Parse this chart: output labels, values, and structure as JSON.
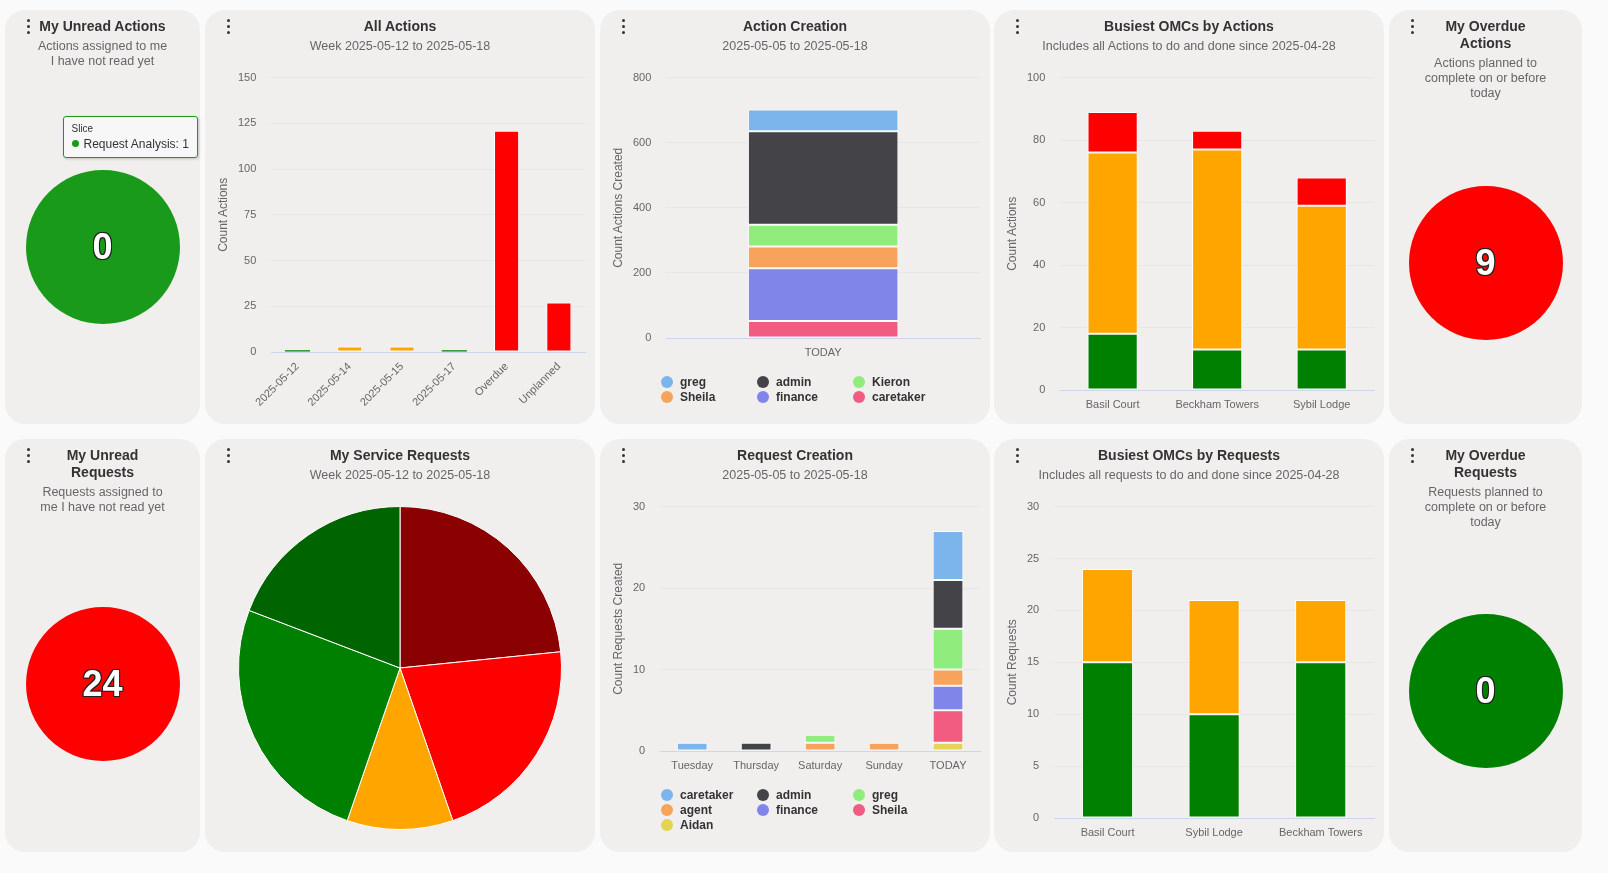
{
  "chart_data": [
    {
      "type": "pie",
      "title": "My Unread Actions",
      "subtitle": "Actions assigned to me I have not read yet",
      "categories": [
        null
      ],
      "values": [
        100
      ],
      "colors": [
        "#1a9a1a"
      ],
      "annotations": [
        "0",
        "Slice",
        "Request Analysis: 1"
      ]
    },
    {
      "type": "bar",
      "title": "All Actions",
      "subtitle": "Week 2025-05-12 to 2025-05-18",
      "ylabel": "Count Actions",
      "categories": [
        "2025-05-12",
        "2025-05-14",
        "2025-05-15",
        "2025-05-17",
        "Overdue",
        "Unplanned"
      ],
      "values": [
        1,
        3,
        3,
        1,
        121,
        27
      ],
      "colors": [
        "#008000",
        "#ffa500",
        "#ffa500",
        "#008000",
        "#ff0000",
        "#ff0000"
      ],
      "ylim": [
        0,
        150
      ],
      "yticks": [
        0,
        25,
        50,
        75,
        100,
        125,
        150
      ],
      "grid": "y"
    },
    {
      "type": "bar",
      "title": "Action Creation",
      "subtitle": "2025-05-05 to 2025-05-18",
      "ylabel": "Count Actions Created",
      "categories": [
        "TODAY"
      ],
      "stacked": true,
      "series": [
        {
          "name": "caretaker",
          "color": "#f15c80",
          "values": [
            52
          ]
        },
        {
          "name": "finance",
          "color": "#8085e9",
          "values": [
            162
          ]
        },
        {
          "name": "Sheila",
          "color": "#f7a35c",
          "values": [
            67
          ]
        },
        {
          "name": "Kieron",
          "color": "#90ed7d",
          "values": [
            67
          ]
        },
        {
          "name": "admin",
          "color": "#434348",
          "values": [
            287
          ]
        },
        {
          "name": "greg",
          "color": "#7cb5ec",
          "values": [
            67
          ]
        }
      ],
      "ylim": [
        0,
        800
      ],
      "yticks": [
        0,
        200,
        400,
        600,
        800
      ],
      "grid": "y",
      "legend": "bottom"
    },
    {
      "type": "bar",
      "title": "Busiest OMCs by Actions",
      "subtitle": "Includes all Actions to do and done since 2025-04-28",
      "ylabel": "Count Actions",
      "categories": [
        "Basil Court",
        "Beckham Towers",
        "Sybil Lodge"
      ],
      "stacked": true,
      "series": [
        {
          "color": "#008000",
          "values": [
            18,
            13,
            13
          ]
        },
        {
          "color": "#ffa500",
          "values": [
            58,
            64,
            46
          ]
        },
        {
          "color": "#ff0000",
          "values": [
            13,
            6,
            9
          ]
        }
      ],
      "ylim": [
        0,
        100
      ],
      "yticks": [
        0,
        20,
        40,
        60,
        80,
        100
      ],
      "grid": "y"
    },
    {
      "type": "pie",
      "title": "My Overdue Actions",
      "subtitle": "Actions planned to complete on or before today",
      "categories": [
        null
      ],
      "values": [
        100
      ],
      "colors": [
        "#ff0000"
      ],
      "annotations": [
        "9"
      ]
    },
    {
      "type": "pie",
      "title": "My Unread Requests",
      "subtitle": "Requests assigned to me I have not read yet",
      "categories": [
        null
      ],
      "values": [
        100
      ],
      "colors": [
        "#ff0000"
      ],
      "annotations": [
        "24"
      ]
    },
    {
      "type": "pie",
      "title": "My Service Requests",
      "subtitle": "Week 2025-05-12 to 2025-05-18",
      "categories": [
        null,
        null,
        null,
        null,
        null
      ],
      "values": [
        23.4,
        21.3,
        10.6,
        25.5,
        19.2
      ],
      "colors": [
        "#8b0000",
        "#ff0000",
        "#ffa500",
        "#008000",
        "#006400"
      ]
    },
    {
      "type": "bar",
      "title": "Request Creation",
      "subtitle": "2025-05-05 to 2025-05-18",
      "ylabel": "Count Requests Created",
      "categories": [
        "Tuesday",
        "Thursday",
        "Saturday",
        "Sunday",
        "TODAY"
      ],
      "stacked": true,
      "series": [
        {
          "name": "Aidan",
          "color": "#e4d354",
          "values": [
            null,
            null,
            null,
            null,
            1
          ]
        },
        {
          "name": "Sheila",
          "color": "#f15c80",
          "values": [
            null,
            null,
            null,
            null,
            4
          ]
        },
        {
          "name": "finance",
          "color": "#8085e9",
          "values": [
            null,
            null,
            null,
            null,
            3
          ]
        },
        {
          "name": "agent",
          "color": "#f7a35c",
          "values": [
            null,
            null,
            1,
            1,
            2
          ]
        },
        {
          "name": "greg",
          "color": "#90ed7d",
          "values": [
            null,
            null,
            1,
            null,
            5
          ]
        },
        {
          "name": "admin",
          "color": "#434348",
          "values": [
            null,
            1,
            null,
            null,
            6
          ]
        },
        {
          "name": "caretaker",
          "color": "#7cb5ec",
          "values": [
            1,
            null,
            null,
            null,
            6
          ]
        }
      ],
      "ylim": [
        0,
        30
      ],
      "yticks": [
        0,
        10,
        20,
        30
      ],
      "grid": "y",
      "legend": "bottom"
    },
    {
      "type": "bar",
      "title": "Busiest OMCs by Requests",
      "subtitle": "Includes all requests to do and done since 2025-04-28",
      "ylabel": "Count Requests",
      "categories": [
        "Basil Court",
        "Sybil Lodge",
        "Beckham Towers"
      ],
      "stacked": true,
      "series": [
        {
          "color": "#008000",
          "values": [
            15,
            10,
            15
          ]
        },
        {
          "color": "#ffa500",
          "values": [
            9,
            11,
            6
          ]
        }
      ],
      "ylim": [
        0,
        30
      ],
      "yticks": [
        0,
        5,
        10,
        15,
        20,
        25,
        30
      ],
      "grid": "y"
    },
    {
      "type": "pie",
      "title": "My Overdue Requests",
      "subtitle": "Requests planned to complete on or before today",
      "categories": [
        null
      ],
      "values": [
        100
      ],
      "colors": [
        "#008000"
      ],
      "annotations": [
        "0"
      ]
    }
  ]
}
